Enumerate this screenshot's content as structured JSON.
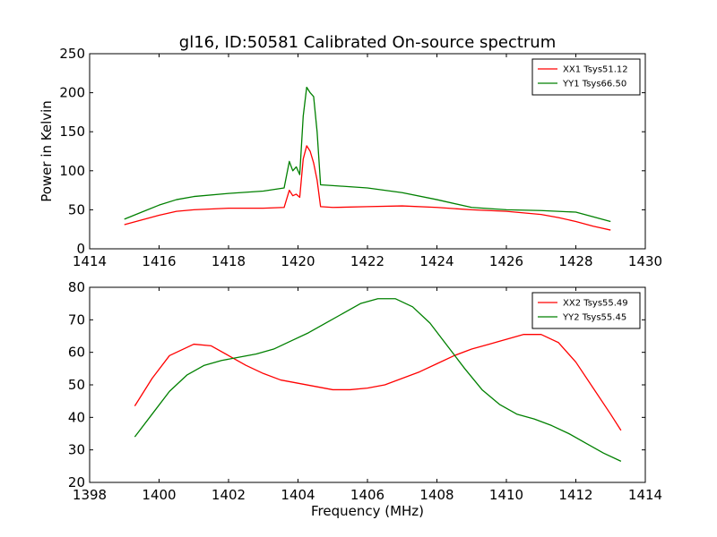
{
  "chart_data": [
    {
      "type": "line",
      "title": "gl16, ID:50581 Calibrated On-source spectrum",
      "xlabel": "",
      "ylabel": "Power in Kelvin",
      "xlim": [
        1414,
        1430
      ],
      "ylim": [
        0,
        250
      ],
      "xticks": [
        1414,
        1416,
        1418,
        1420,
        1422,
        1424,
        1426,
        1428,
        1430
      ],
      "yticks": [
        0,
        50,
        100,
        150,
        200,
        250
      ],
      "legend_position": "top-right",
      "series": [
        {
          "name": "XX1 Tsys51.12",
          "color": "#ff0000",
          "x": [
            1415.0,
            1415.5,
            1416.0,
            1416.5,
            1417.0,
            1418.0,
            1419.0,
            1419.6,
            1419.75,
            1419.85,
            1419.95,
            1420.05,
            1420.15,
            1420.25,
            1420.35,
            1420.45,
            1420.55,
            1420.65,
            1421.0,
            1422.0,
            1423.0,
            1424.0,
            1425.0,
            1426.0,
            1427.0,
            1427.5,
            1428.0,
            1428.5,
            1429.0
          ],
          "y": [
            31,
            37,
            43,
            48,
            50,
            52,
            52,
            53,
            75,
            68,
            70,
            66,
            115,
            132,
            125,
            110,
            88,
            54,
            53,
            54,
            55,
            53,
            50,
            48,
            44,
            40,
            35,
            29,
            24
          ]
        },
        {
          "name": "YY1 Tsys66.50",
          "color": "#008000",
          "x": [
            1415.0,
            1415.5,
            1416.0,
            1416.5,
            1417.0,
            1418.0,
            1419.0,
            1419.6,
            1419.75,
            1419.85,
            1419.95,
            1420.05,
            1420.15,
            1420.25,
            1420.35,
            1420.45,
            1420.55,
            1420.65,
            1421.0,
            1422.0,
            1423.0,
            1424.0,
            1425.0,
            1426.0,
            1427.0,
            1428.0,
            1428.5,
            1429.0
          ],
          "y": [
            38,
            47,
            56,
            63,
            67,
            71,
            74,
            78,
            112,
            100,
            105,
            95,
            170,
            207,
            200,
            195,
            150,
            82,
            81,
            78,
            72,
            63,
            53,
            50,
            49,
            47,
            41,
            35
          ]
        }
      ]
    },
    {
      "type": "line",
      "title": "",
      "xlabel": "Frequency (MHz)",
      "ylabel": "",
      "xlim": [
        1398,
        1414
      ],
      "ylim": [
        20,
        80
      ],
      "xticks": [
        1398,
        1400,
        1402,
        1404,
        1406,
        1408,
        1410,
        1412,
        1414
      ],
      "yticks": [
        20,
        30,
        40,
        50,
        60,
        70,
        80
      ],
      "legend_position": "top-right",
      "series": [
        {
          "name": "XX2 Tsys55.49",
          "color": "#ff0000",
          "x": [
            1399.3,
            1399.8,
            1400.3,
            1401.0,
            1401.5,
            1402.0,
            1402.5,
            1403.0,
            1403.5,
            1404.0,
            1404.5,
            1405.0,
            1405.5,
            1406.0,
            1406.5,
            1407.0,
            1407.5,
            1408.0,
            1408.5,
            1409.0,
            1409.5,
            1410.0,
            1410.5,
            1411.0,
            1411.5,
            1412.0,
            1412.5,
            1413.0,
            1413.3
          ],
          "y": [
            43.5,
            52,
            59,
            62.5,
            62,
            59,
            56,
            53.5,
            51.5,
            50.5,
            49.5,
            48.5,
            48.5,
            49,
            50,
            52,
            54,
            56.5,
            59,
            61,
            62.5,
            64,
            65.5,
            65.5,
            63,
            57,
            49,
            41,
            36
          ]
        },
        {
          "name": "YY2 Tsys55.45",
          "color": "#008000",
          "x": [
            1399.3,
            1399.8,
            1400.3,
            1400.8,
            1401.3,
            1401.8,
            1402.3,
            1402.8,
            1403.3,
            1403.8,
            1404.3,
            1404.8,
            1405.3,
            1405.8,
            1406.3,
            1406.8,
            1407.3,
            1407.8,
            1408.3,
            1408.8,
            1409.3,
            1409.8,
            1410.3,
            1410.8,
            1411.3,
            1411.8,
            1412.3,
            1412.8,
            1413.3
          ],
          "y": [
            34,
            41,
            48,
            53,
            56,
            57.5,
            58.5,
            59.5,
            61,
            63.5,
            66,
            69,
            72,
            75,
            76.5,
            76.5,
            74,
            69,
            62,
            55,
            48.5,
            44,
            41,
            39.5,
            37.5,
            35,
            32,
            29,
            26.5
          ]
        }
      ]
    }
  ]
}
